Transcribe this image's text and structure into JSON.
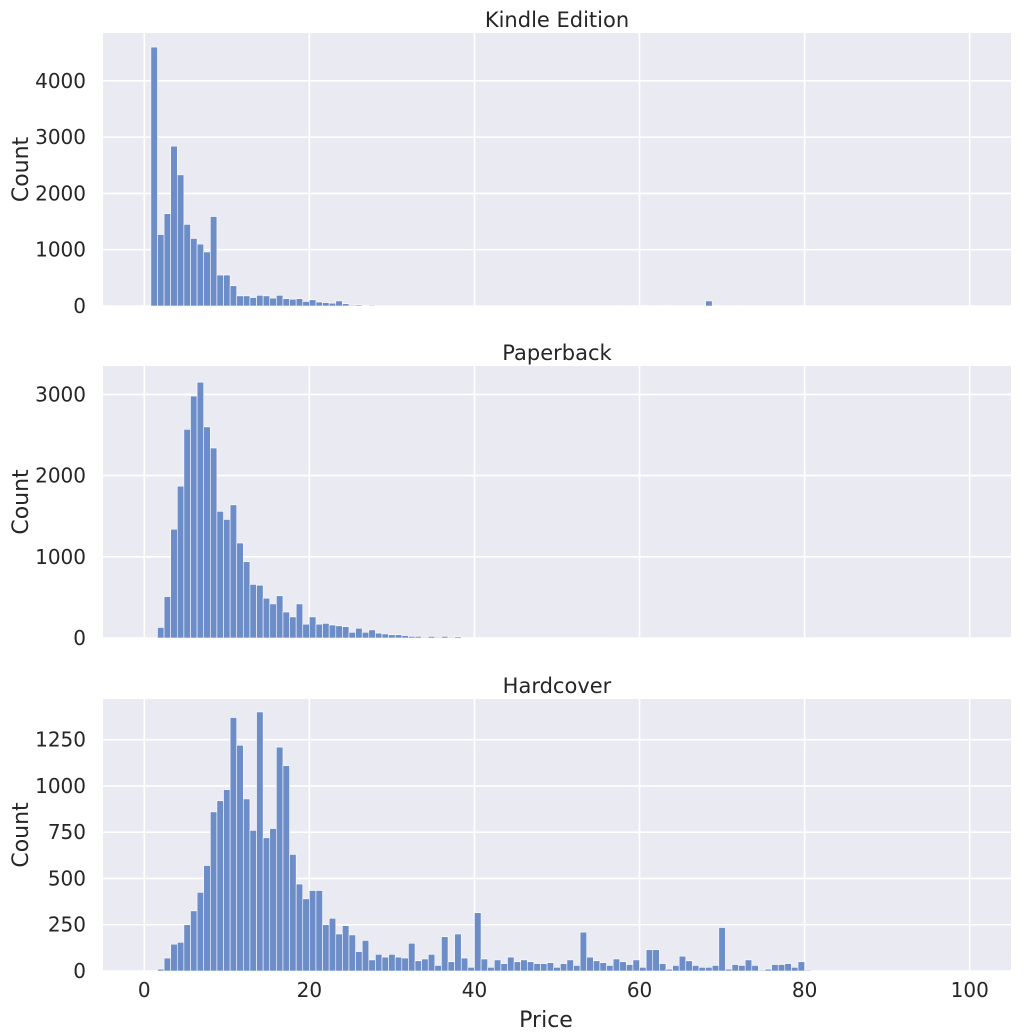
{
  "chart_data": [
    {
      "type": "bar",
      "title": "Kindle Edition",
      "xlabel": "",
      "ylabel": "Count",
      "xlim": [
        -5,
        105
      ],
      "ylim": [
        0,
        4850
      ],
      "yticks": [
        0,
        1000,
        2000,
        3000,
        4000
      ],
      "xticks": [
        0,
        20,
        40,
        60,
        80,
        100
      ],
      "grid": true,
      "bin_start": 0,
      "bin_width": 0.8,
      "values": [
        0,
        4600,
        1270,
        1640,
        2840,
        2330,
        1450,
        1200,
        1100,
        960,
        1590,
        550,
        550,
        360,
        180,
        180,
        150,
        190,
        180,
        140,
        190,
        130,
        120,
        130,
        80,
        110,
        70,
        60,
        50,
        90,
        40,
        15,
        20,
        10,
        15,
        5,
        5,
        3,
        3,
        2,
        2,
        2,
        2,
        1,
        1,
        1,
        1,
        1,
        1,
        1,
        1,
        1,
        1,
        1,
        1,
        1,
        1,
        1,
        1,
        1,
        1,
        1,
        1,
        1,
        1,
        1,
        1,
        1,
        1,
        1,
        1,
        5,
        10,
        5,
        5,
        10,
        5,
        5,
        10,
        10,
        5,
        5,
        5,
        5,
        5,
        90,
        5,
        5,
        5,
        5,
        10,
        5,
        5,
        5,
        5,
        5,
        5,
        5,
        5,
        5,
        5
      ]
    },
    {
      "type": "bar",
      "title": "Paperback",
      "xlabel": "",
      "ylabel": "Count",
      "xlim": [
        -5,
        105
      ],
      "ylim": [
        0,
        3350
      ],
      "yticks": [
        0,
        1000,
        2000,
        3000
      ],
      "xticks": [
        0,
        20,
        40,
        60,
        80,
        100
      ],
      "grid": true,
      "bin_start": 0,
      "bin_width": 0.8,
      "values": [
        0,
        0,
        130,
        510,
        1340,
        1870,
        2570,
        2980,
        3150,
        2600,
        2340,
        1560,
        1460,
        1640,
        1170,
        940,
        660,
        650,
        490,
        420,
        520,
        320,
        260,
        420,
        170,
        260,
        170,
        180,
        160,
        150,
        140,
        70,
        120,
        70,
        100,
        60,
        50,
        40,
        40,
        30,
        20,
        20,
        10,
        20,
        10,
        20,
        10,
        15,
        5,
        5,
        5,
        5,
        5,
        5,
        5,
        5,
        5,
        5,
        5,
        3,
        3,
        3,
        3,
        3,
        3,
        3,
        3,
        3,
        3,
        3,
        3,
        2,
        2,
        2,
        2,
        2,
        2,
        2,
        2,
        2,
        2,
        2,
        2,
        2,
        2,
        2,
        2,
        2,
        2,
        2,
        2,
        2,
        2,
        2,
        2,
        2,
        2,
        2,
        2,
        2,
        2
      ]
    },
    {
      "type": "bar",
      "title": "Hardcover",
      "xlabel": "Price",
      "ylabel": "Count",
      "xlim": [
        -5,
        105
      ],
      "ylim": [
        0,
        1470
      ],
      "yticks": [
        0,
        250,
        500,
        750,
        1000,
        1250
      ],
      "xticks": [
        0,
        20,
        40,
        60,
        80,
        100
      ],
      "grid": true,
      "bin_start": 0,
      "bin_width": 0.8,
      "values": [
        0,
        0,
        10,
        70,
        145,
        155,
        250,
        325,
        425,
        570,
        860,
        920,
        980,
        1370,
        1220,
        930,
        760,
        1400,
        720,
        770,
        1210,
        1110,
        630,
        470,
        390,
        435,
        435,
        250,
        285,
        200,
        245,
        195,
        105,
        165,
        60,
        90,
        75,
        90,
        75,
        70,
        150,
        55,
        65,
        90,
        30,
        185,
        50,
        200,
        70,
        20,
        315,
        65,
        20,
        60,
        40,
        75,
        50,
        60,
        50,
        40,
        40,
        45,
        20,
        40,
        60,
        30,
        210,
        75,
        55,
        45,
        30,
        65,
        50,
        35,
        60,
        20,
        115,
        115,
        40,
        10,
        30,
        80,
        55,
        30,
        20,
        20,
        30,
        235,
        10,
        35,
        30,
        60,
        30,
        5,
        10,
        35,
        35,
        40,
        20,
        50,
        5
      ]
    }
  ]
}
